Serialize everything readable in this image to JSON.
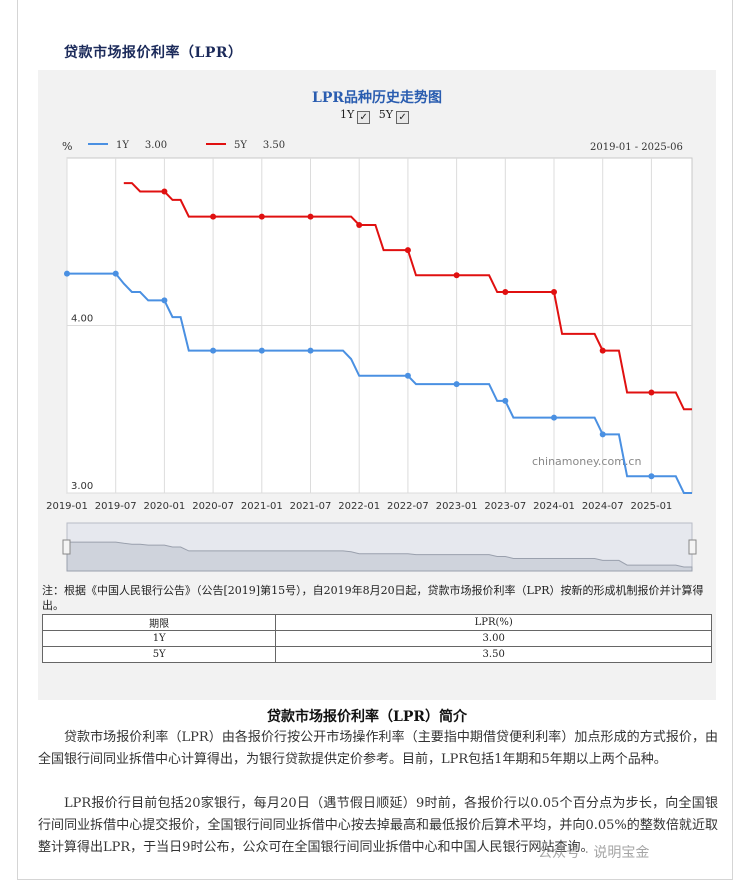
{
  "section_title": "贷款市场报价利率（LPR）",
  "toggle": {
    "y1_label": "1Y",
    "y5_label": "5Y",
    "check": "✓"
  },
  "legend": {
    "y1": {
      "name": "1Y",
      "value": "3.00"
    },
    "y5": {
      "name": "5Y",
      "value": "3.50"
    }
  },
  "date_range": "2019-01 - 2025-06",
  "watermark_site": "chinamoney.com.cn",
  "chart_data": {
    "type": "line",
    "title": "LPR品种历史走势图",
    "ylabel": "%",
    "ylim": [
      3.0,
      5.0
    ],
    "y_ticks": [
      "4.00",
      "3.00"
    ],
    "x_ticks": [
      "2019-01",
      "2019-07",
      "2020-01",
      "2020-07",
      "2021-01",
      "2021-07",
      "2022-01",
      "2022-07",
      "2023-01",
      "2023-07",
      "2024-01",
      "2024-07",
      "2025-01"
    ],
    "grid": true,
    "legend_position": "top-left",
    "colors": {
      "1Y": "#4a90e2",
      "5Y": "#e01010"
    },
    "series": [
      {
        "name": "1Y",
        "points": [
          [
            "2019-01",
            4.31
          ],
          [
            "2019-07",
            4.31
          ],
          [
            "2019-08",
            4.25
          ],
          [
            "2019-09",
            4.2
          ],
          [
            "2019-10",
            4.2
          ],
          [
            "2019-11",
            4.15
          ],
          [
            "2019-12",
            4.15
          ],
          [
            "2020-01",
            4.15
          ],
          [
            "2020-02",
            4.05
          ],
          [
            "2020-03",
            4.05
          ],
          [
            "2020-04",
            3.85
          ],
          [
            "2020-07",
            3.85
          ],
          [
            "2021-01",
            3.85
          ],
          [
            "2021-07",
            3.85
          ],
          [
            "2021-11",
            3.85
          ],
          [
            "2021-12",
            3.8
          ],
          [
            "2022-01",
            3.7
          ],
          [
            "2022-07",
            3.7
          ],
          [
            "2022-08",
            3.65
          ],
          [
            "2023-01",
            3.65
          ],
          [
            "2023-05",
            3.65
          ],
          [
            "2023-06",
            3.55
          ],
          [
            "2023-07",
            3.55
          ],
          [
            "2023-08",
            3.45
          ],
          [
            "2024-01",
            3.45
          ],
          [
            "2024-06",
            3.45
          ],
          [
            "2024-07",
            3.35
          ],
          [
            "2024-09",
            3.35
          ],
          [
            "2024-10",
            3.1
          ],
          [
            "2025-01",
            3.1
          ],
          [
            "2025-04",
            3.1
          ],
          [
            "2025-05",
            3.0
          ],
          [
            "2025-06",
            3.0
          ]
        ]
      },
      {
        "name": "5Y",
        "points": [
          [
            "2019-08",
            4.85
          ],
          [
            "2019-09",
            4.85
          ],
          [
            "2019-10",
            4.8
          ],
          [
            "2019-11",
            4.8
          ],
          [
            "2019-12",
            4.8
          ],
          [
            "2020-01",
            4.8
          ],
          [
            "2020-02",
            4.75
          ],
          [
            "2020-03",
            4.75
          ],
          [
            "2020-04",
            4.65
          ],
          [
            "2020-07",
            4.65
          ],
          [
            "2021-01",
            4.65
          ],
          [
            "2021-07",
            4.65
          ],
          [
            "2021-12",
            4.65
          ],
          [
            "2022-01",
            4.6
          ],
          [
            "2022-03",
            4.6
          ],
          [
            "2022-04",
            4.45
          ],
          [
            "2022-07",
            4.45
          ],
          [
            "2022-08",
            4.3
          ],
          [
            "2023-01",
            4.3
          ],
          [
            "2023-05",
            4.3
          ],
          [
            "2023-06",
            4.2
          ],
          [
            "2023-07",
            4.2
          ],
          [
            "2024-01",
            4.2
          ],
          [
            "2024-02",
            3.95
          ],
          [
            "2024-06",
            3.95
          ],
          [
            "2024-07",
            3.85
          ],
          [
            "2024-09",
            3.85
          ],
          [
            "2024-10",
            3.6
          ],
          [
            "2025-01",
            3.6
          ],
          [
            "2025-04",
            3.6
          ],
          [
            "2025-05",
            3.5
          ],
          [
            "2025-06",
            3.5
          ]
        ]
      }
    ],
    "markers": {
      "1Y": [
        [
          "2019-01",
          4.31
        ],
        [
          "2019-07",
          4.31
        ],
        [
          "2020-01",
          4.15
        ],
        [
          "2020-07",
          3.85
        ],
        [
          "2021-01",
          3.85
        ],
        [
          "2021-07",
          3.85
        ],
        [
          "2022-07",
          3.7
        ],
        [
          "2023-01",
          3.65
        ],
        [
          "2023-07",
          3.55
        ],
        [
          "2024-01",
          3.45
        ],
        [
          "2024-07",
          3.35
        ],
        [
          "2025-01",
          3.1
        ]
      ],
      "5Y": [
        [
          "2020-01",
          4.8
        ],
        [
          "2020-07",
          4.65
        ],
        [
          "2021-01",
          4.65
        ],
        [
          "2021-07",
          4.65
        ],
        [
          "2022-01",
          4.6
        ],
        [
          "2022-07",
          4.45
        ],
        [
          "2023-01",
          4.3
        ],
        [
          "2023-07",
          4.2
        ],
        [
          "2024-01",
          4.2
        ],
        [
          "2024-07",
          3.85
        ],
        [
          "2025-01",
          3.6
        ]
      ]
    }
  },
  "note": "注：根据《中国人民银行公告》（公告[2019]第15号），自2019年8月20日起，贷款市场报价利率（LPR）按新的形成机制报价并计算得出。",
  "table": {
    "headers": [
      "期限",
      "LPR(%)"
    ],
    "rows": [
      [
        "1Y",
        "3.00"
      ],
      [
        "5Y",
        "3.50"
      ]
    ]
  },
  "intro_title": "贷款市场报价利率（LPR）简介",
  "paragraphs": [
    "贷款市场报价利率（LPR）由各报价行按公开市场操作利率（主要指中期借贷便利利率）加点形成的方式报价，由全国银行间同业拆借中心计算得出，为银行贷款提供定价参考。目前，LPR包括1年期和5年期以上两个品种。",
    "LPR报价行目前包括20家银行，每月20日（遇节假日顺延）9时前，各报价行以0.05个百分点为步长，向全国银行间同业拆借中心提交报价，全国银行间同业拆借中心按去掉最高和最低报价后算术平均，并向0.05%的整数倍就近取整计算得出LPR，于当日9时公布，公众可在全国银行间同业拆借中心和中国人民银行网站查询。"
  ],
  "watermark_text": "公众号 · 说明宝金"
}
